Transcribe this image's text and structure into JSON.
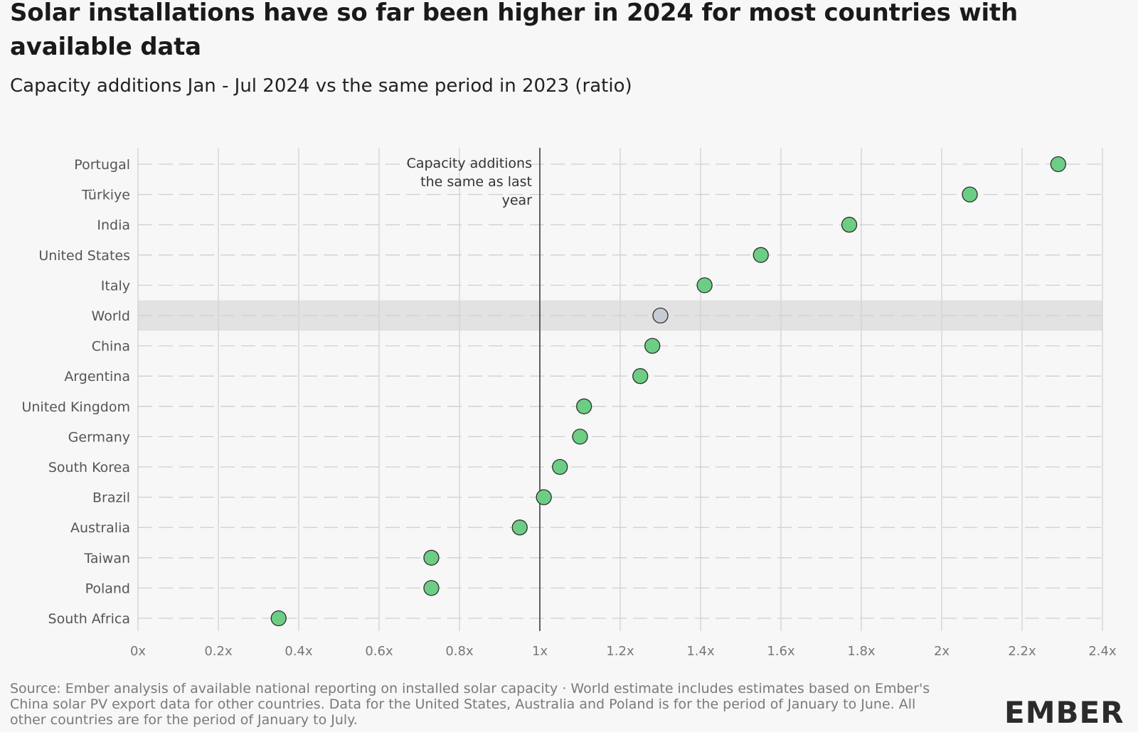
{
  "title": "Solar installations have so far been higher in 2024 for most countries with available data",
  "subtitle": "Capacity additions Jan - Jul 2024 vs the same period in 2023 (ratio)",
  "source": "Source: Ember analysis of available national reporting on installed solar capacity · World estimate includes estimates based on Ember's China solar PV export data for other countries. Data for the United States, Australia and Poland is for the period of January to June. All other countries are for the period of January to July.",
  "logo": "EMBER",
  "colors": {
    "point": "#6cce84",
    "world_point": "#c6ccd6",
    "world_band": "#e2e2e2",
    "reference_line": "#333333"
  },
  "chart_data": {
    "type": "scatter",
    "orientation": "horizontal-dot-plot",
    "categories": [
      "Portugal",
      "Türkiye",
      "India",
      "United States",
      "Italy",
      "World",
      "China",
      "Argentina",
      "United Kingdom",
      "Germany",
      "South Korea",
      "Brazil",
      "Australia",
      "Taiwan",
      "Poland",
      "South Africa"
    ],
    "values": [
      2.29,
      2.07,
      1.77,
      1.55,
      1.41,
      1.3,
      1.28,
      1.25,
      1.11,
      1.1,
      1.05,
      1.01,
      0.95,
      0.73,
      0.73,
      0.35
    ],
    "highlight_category": "World",
    "xlim": [
      0,
      2.4
    ],
    "x_ticks": [
      0,
      0.2,
      0.4,
      0.6,
      0.8,
      1,
      1.2,
      1.4,
      1.6,
      1.8,
      2,
      2.2,
      2.4
    ],
    "x_tick_labels": [
      "0x",
      "0.2x",
      "0.4x",
      "0.6x",
      "0.8x",
      "1x",
      "1.2x",
      "1.4x",
      "1.6x",
      "1.8x",
      "2x",
      "2.2x",
      "2.4x"
    ],
    "reference_x": 1,
    "reference_label": [
      "Capacity additions",
      "the same as last",
      "year"
    ],
    "grid": true
  }
}
